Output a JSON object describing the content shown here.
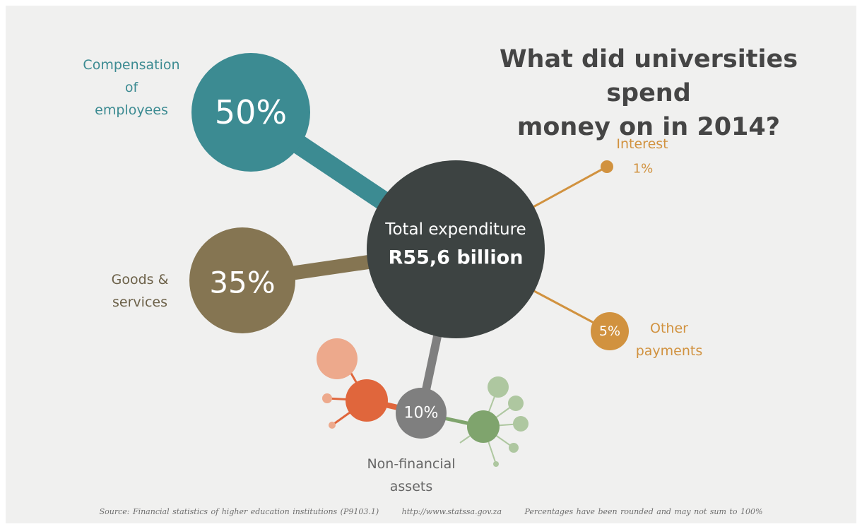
{
  "title": "What did universities spend\nmoney on in 2014?",
  "center": {
    "line1": "Total expenditure",
    "line2": "R55,6 billion"
  },
  "chart_data": {
    "type": "bubble",
    "title": "What did universities spend money on in 2014?",
    "total": "R55,6 billion",
    "categories": [
      "Compensation of employees",
      "Goods & services",
      "Interest",
      "Other payments",
      "Non-financial assets"
    ],
    "values": [
      50,
      35,
      1,
      5,
      10
    ],
    "unit": "%",
    "segments": [
      {
        "key": "comp",
        "label": "Compensation\nof\nemployees",
        "value_label": "50%",
        "value": 50,
        "color": "#3c8b92"
      },
      {
        "key": "goods",
        "label": "Goods &\nservices",
        "value_label": "35%",
        "value": 35,
        "color": "#857552"
      },
      {
        "key": "interest",
        "label": "Interest",
        "value_label": "1%",
        "value": 1,
        "color": "#d1923f"
      },
      {
        "key": "other",
        "label": "Other\npayments",
        "value_label": "5%",
        "value": 5,
        "color": "#d1923f"
      },
      {
        "key": "nonfin",
        "label": "Non-financial\nassets",
        "value_label": "10%",
        "value": 10,
        "color": "#7f7f7f"
      }
    ]
  },
  "colors": {
    "center": "#3d4342",
    "decor_orange": "#e0663c",
    "decor_orange_light": "#eda98c",
    "decor_green": "#7fa46d",
    "decor_green_light": "#aec7a0"
  },
  "footer": {
    "source": "Source: Financial statistics of higher education institutions (P9103.1)",
    "url": "http://www.statssa.gov.za",
    "note": "Percentages have been rounded and may not sum to 100%"
  }
}
